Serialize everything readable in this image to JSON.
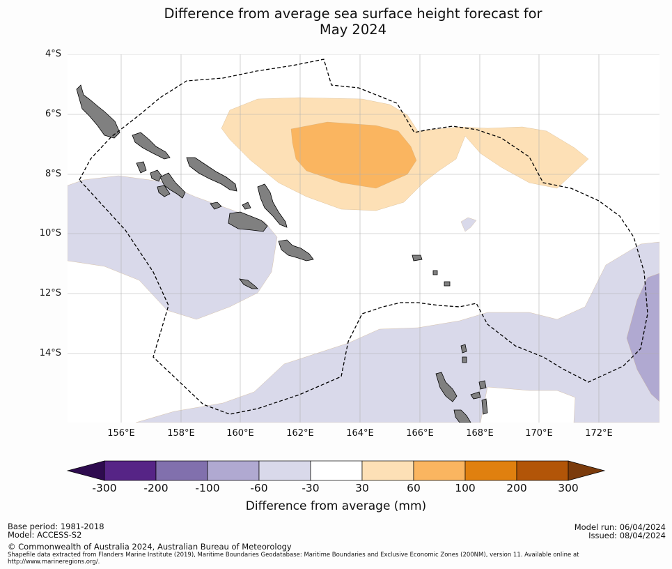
{
  "title": {
    "line1": "Difference from average sea surface height forecast for",
    "line2": "May 2024"
  },
  "map": {
    "region": "Solomon Islands and Vanuatu, south-west Pacific Ocean",
    "lat_ticks": [
      "4°S",
      "6°S",
      "8°S",
      "10°S",
      "12°S",
      "14°S"
    ],
    "lon_ticks": [
      "156°E",
      "158°E",
      "160°E",
      "162°E",
      "164°E",
      "166°E",
      "168°E",
      "170°E",
      "172°E"
    ],
    "colors": {
      "land": "#808080",
      "anomaly_30_60": "#fde0b6",
      "anomaly_60_100": "#fab560",
      "anomaly_-60_-30": "#d9d9ea",
      "anomaly_-100_-60": "#b0a9d1",
      "eez_boundary": "#000000",
      "gridline": "#b0b0b0"
    }
  },
  "colorbar": {
    "title": "Difference from average (mm)",
    "tick_labels": [
      "-300",
      "-200",
      "-100",
      "-60",
      "-30",
      "30",
      "60",
      "100",
      "200",
      "300"
    ],
    "colors": [
      "#2e0b4f",
      "#562486",
      "#8170ad",
      "#b0a9d1",
      "#d9d9ea",
      "#ffffff",
      "#fde0b6",
      "#fab560",
      "#e0800f",
      "#b25508",
      "#7b3b0c"
    ]
  },
  "footer": {
    "base_period": "Base period: 1981-2018",
    "model": "Model: ACCESS-S2",
    "model_run": "Model run: 06/04/2024",
    "issued": "Issued: 08/04/2024",
    "copyright": "© Commonwealth of Australia 2024, Australian Bureau of Meteorology",
    "source_line1": "Shapefile data extracted from Flanders Marine Institute (2019), Maritime Boundaries Geodatabase: Maritime Boundaries and Exclusive Economic Zones (200NM), version 11. Available online at",
    "source_line2": "http://www.marineregions.org/."
  }
}
